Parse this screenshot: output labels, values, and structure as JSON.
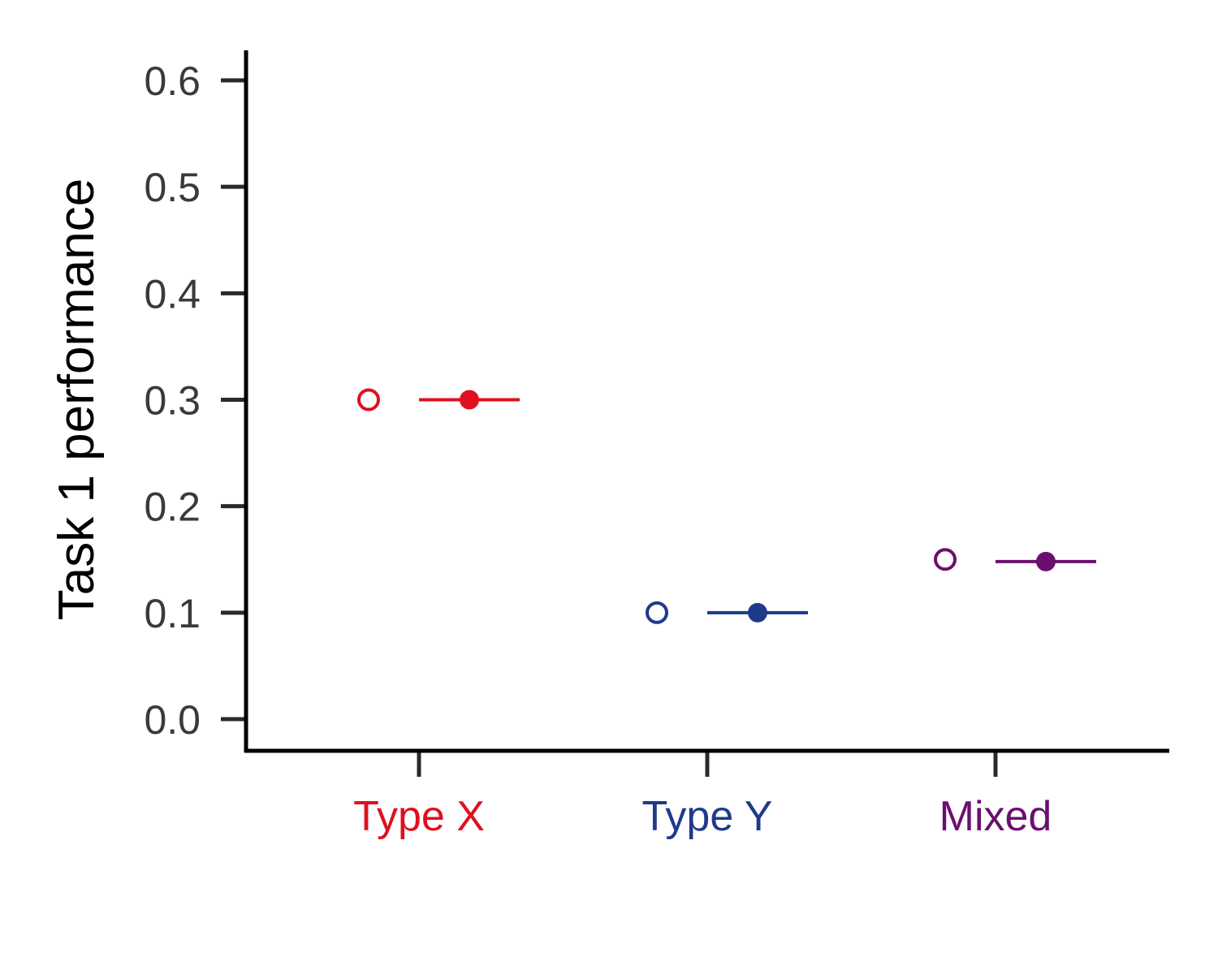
{
  "chart_data": {
    "type": "scatter",
    "title": "",
    "xlabel": "",
    "ylabel": "Task 1 performance",
    "ylim": [
      -0.03,
      0.63
    ],
    "yticks": [
      "0.0",
      "0.1",
      "0.2",
      "0.3",
      "0.4",
      "0.5",
      "0.6"
    ],
    "categories": [
      "Type X",
      "Type Y",
      "Mixed"
    ],
    "category_colors": [
      "#e0101f",
      "#1f3a8a",
      "#6b0f6e"
    ],
    "series": [
      {
        "marker": "open-circle",
        "values": [
          0.3,
          0.1,
          0.15
        ]
      },
      {
        "marker": "filled-circle-with-errorbar",
        "values": [
          0.3,
          0.1,
          0.148
        ],
        "error_low": [
          0.3,
          0.1,
          0.148
        ],
        "error_high": [
          0.3,
          0.1,
          0.148
        ]
      }
    ],
    "grid": false,
    "legend": "none"
  }
}
